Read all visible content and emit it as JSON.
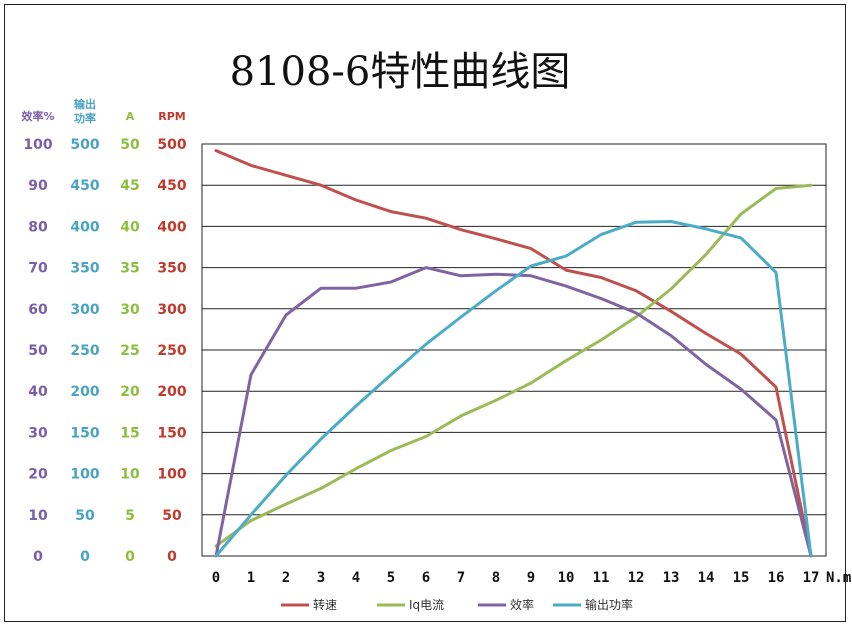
{
  "chart_data": {
    "type": "line",
    "title": "8108-6特性曲线图",
    "xlabel": "N.m",
    "x": [
      0,
      1,
      2,
      3,
      4,
      5,
      6,
      7,
      8,
      9,
      10,
      11,
      12,
      13,
      14,
      15,
      16,
      17
    ],
    "xlim": [
      0,
      17
    ],
    "grid": true,
    "legend_position": "bottom",
    "axes": [
      {
        "id": "eff",
        "label": "效率%",
        "min": 0,
        "max": 100,
        "step": 10,
        "color": "#7b5ea7"
      },
      {
        "id": "power",
        "label": "输出功率",
        "min": 0,
        "max": 500,
        "step": 50,
        "color": "#4aa3c3"
      },
      {
        "id": "amp",
        "label": "A",
        "min": 0,
        "max": 50,
        "step": 5,
        "color": "#8cbf3f"
      },
      {
        "id": "rpm",
        "label": "RPM",
        "min": 0,
        "max": 500,
        "step": 50,
        "color": "#c0392b"
      }
    ],
    "series": [
      {
        "name": "转速",
        "axis": "rpm",
        "color": "#c0504d",
        "values": [
          492,
          474,
          462,
          450,
          432,
          418,
          410,
          396,
          385,
          373,
          347,
          338,
          322,
          297,
          270,
          245,
          205,
          0
        ]
      },
      {
        "name": "Iq电流",
        "axis": "amp",
        "color": "#9bbb59",
        "values": [
          1.2,
          4.3,
          6.3,
          8.2,
          10.6,
          12.8,
          14.5,
          17.0,
          18.9,
          21.0,
          23.7,
          26.2,
          29.0,
          32.4,
          36.6,
          41.5,
          44.6,
          45.0
        ]
      },
      {
        "name": "效率",
        "axis": "eff",
        "color": "#8064a2",
        "values": [
          0,
          44,
          58.5,
          65,
          65,
          66.5,
          70,
          68,
          68.4,
          68,
          65.5,
          62.5,
          59,
          53.5,
          46.5,
          40.5,
          33,
          0
        ]
      },
      {
        "name": "输出功率",
        "axis": "power",
        "color": "#4bacc6",
        "values": [
          0,
          50,
          98,
          142,
          182,
          220,
          257,
          290,
          322,
          352,
          364,
          390,
          405,
          406,
          397,
          386,
          344,
          0
        ]
      }
    ]
  }
}
